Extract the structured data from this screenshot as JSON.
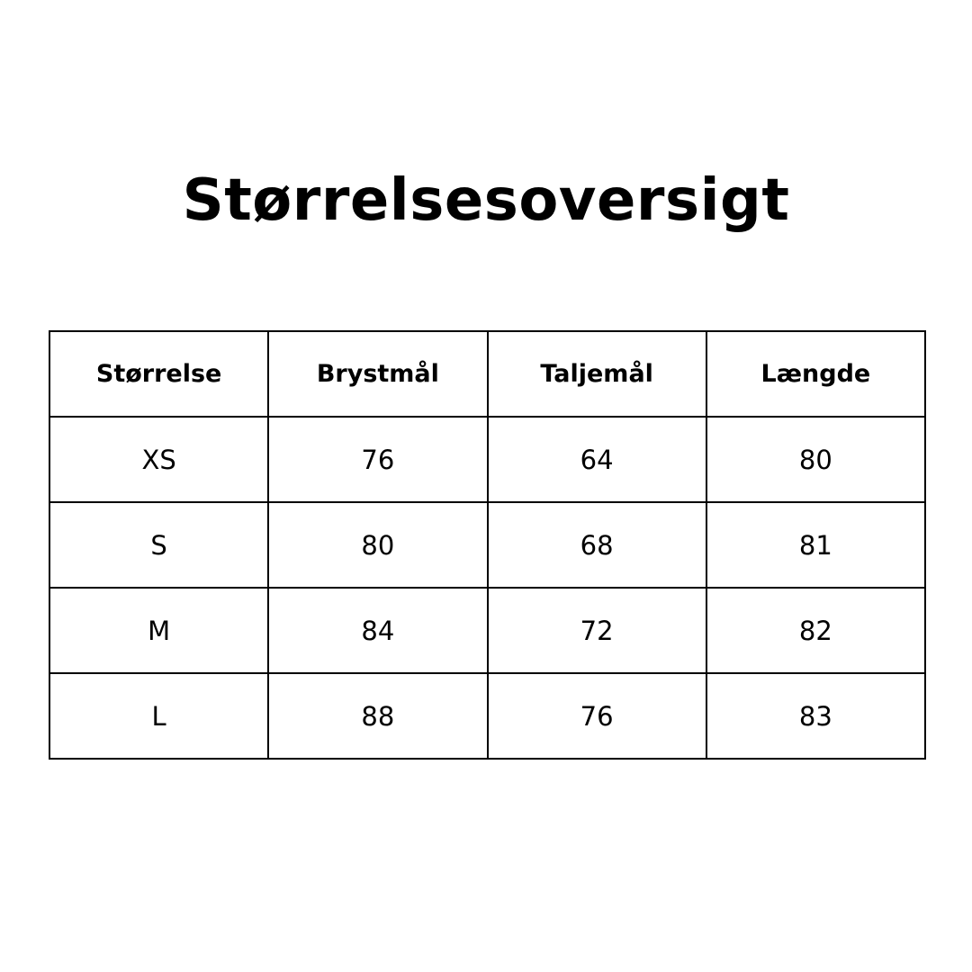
{
  "title": "Størrelsesoversigt",
  "table": {
    "headers": [
      "Størrelse",
      "Brystmål",
      "Taljemål",
      "Længde"
    ],
    "rows": [
      [
        "XS",
        "76",
        "64",
        "80"
      ],
      [
        "S",
        "80",
        "68",
        "81"
      ],
      [
        "M",
        "84",
        "72",
        "82"
      ],
      [
        "L",
        "88",
        "76",
        "83"
      ]
    ]
  }
}
